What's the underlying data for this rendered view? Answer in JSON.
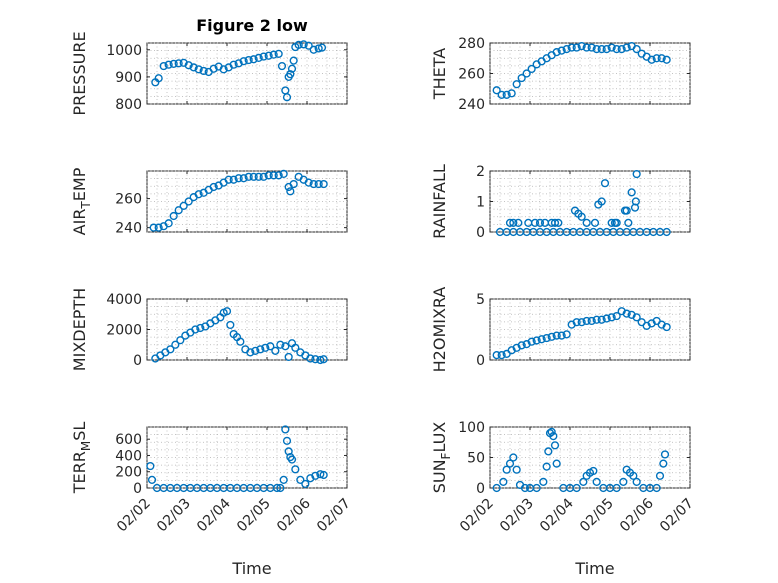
{
  "figure": {
    "title": "Figure 2 low",
    "xlabel": "Time",
    "marker_color": "#0072bd"
  },
  "chart_data": [
    {
      "id": "pressure",
      "type": "scatter",
      "title": "Figure 2 low",
      "ylabel": "PRESSURE",
      "ylim": [
        800,
        1025
      ],
      "yticks": [
        800,
        900,
        1000
      ],
      "xlim": [
        "02/02",
        "02/07"
      ],
      "xticks": [
        "02/02",
        "02/03",
        "02/04",
        "02/05",
        "02/06",
        "02/07"
      ],
      "show_xtick_labels": false,
      "x": [
        "02/02 05:00",
        "02/02 07:00",
        "02/02 10:00",
        "02/02 13:00",
        "02/02 16:00",
        "02/02 19:00",
        "02/02 22:00",
        "02/03 01:00",
        "02/03 04:00",
        "02/03 07:00",
        "02/03 10:00",
        "02/03 13:00",
        "02/03 16:00",
        "02/03 19:00",
        "02/03 22:00",
        "02/04 01:00",
        "02/04 04:00",
        "02/04 07:00",
        "02/04 10:00",
        "02/04 13:00",
        "02/04 16:00",
        "02/04 19:00",
        "02/04 22:00",
        "02/05 01:00",
        "02/05 04:00",
        "02/05 07:00",
        "02/05 09:00",
        "02/05 11:00",
        "02/05 12:00",
        "02/05 13:00",
        "02/05 14:00",
        "02/05 15:00",
        "02/05 16:00",
        "02/05 17:00",
        "02/05 19:00",
        "02/05 22:00",
        "02/06 01:00",
        "02/06 04:00",
        "02/06 07:00",
        "02/06 09:00"
      ],
      "y": [
        880,
        895,
        940,
        945,
        948,
        950,
        952,
        943,
        935,
        928,
        922,
        918,
        930,
        938,
        928,
        935,
        945,
        950,
        958,
        962,
        965,
        970,
        975,
        978,
        982,
        985,
        940,
        850,
        825,
        900,
        910,
        930,
        960,
        1010,
        1018,
        1020,
        1015,
        1000,
        1005,
        1008
      ]
    },
    {
      "id": "theta",
      "type": "scatter",
      "ylabel": "THETA",
      "ylim": [
        240,
        280
      ],
      "yticks": [
        240,
        260,
        280
      ],
      "xlim": [
        "02/02",
        "02/07"
      ],
      "xticks": [
        "02/02",
        "02/03",
        "02/04",
        "02/05",
        "02/06",
        "02/07"
      ],
      "show_xtick_labels": false,
      "x": [
        "02/02 04:00",
        "02/02 07:00",
        "02/02 10:00",
        "02/02 13:00",
        "02/02 16:00",
        "02/02 19:00",
        "02/02 22:00",
        "02/03 01:00",
        "02/03 04:00",
        "02/03 07:00",
        "02/03 10:00",
        "02/03 13:00",
        "02/03 16:00",
        "02/03 19:00",
        "02/03 22:00",
        "02/04 01:00",
        "02/04 04:00",
        "02/04 07:00",
        "02/04 10:00",
        "02/04 13:00",
        "02/04 16:00",
        "02/04 19:00",
        "02/04 22:00",
        "02/05 01:00",
        "02/05 04:00",
        "02/05 07:00",
        "02/05 10:00",
        "02/05 13:00",
        "02/05 16:00",
        "02/05 19:00",
        "02/05 22:00",
        "02/06 01:00",
        "02/06 04:00",
        "02/06 07:00",
        "02/06 10:00"
      ],
      "y": [
        249,
        246,
        246,
        247,
        253,
        257,
        260,
        263,
        266,
        268,
        270,
        272,
        274,
        275,
        276,
        277,
        277,
        278,
        277,
        277,
        276,
        276,
        276,
        277,
        276,
        276,
        277,
        278,
        276,
        273,
        271,
        269,
        270,
        270,
        269
      ]
    },
    {
      "id": "airtemp",
      "type": "scatter",
      "ylabel": "AIR_TEMP",
      "ylabel_base": "AIR",
      "ylabel_sub": "T",
      "ylabel_rest": "EMP",
      "ylim": [
        237,
        279
      ],
      "yticks": [
        240,
        260
      ],
      "xlim": [
        "02/02",
        "02/07"
      ],
      "xticks": [
        "02/02",
        "02/03",
        "02/04",
        "02/05",
        "02/06",
        "02/07"
      ],
      "show_xtick_labels": false,
      "x": [
        "02/02 04:00",
        "02/02 07:00",
        "02/02 10:00",
        "02/02 13:00",
        "02/02 16:00",
        "02/02 19:00",
        "02/02 22:00",
        "02/03 01:00",
        "02/03 04:00",
        "02/03 07:00",
        "02/03 10:00",
        "02/03 13:00",
        "02/03 16:00",
        "02/03 19:00",
        "02/03 22:00",
        "02/04 01:00",
        "02/04 04:00",
        "02/04 07:00",
        "02/04 10:00",
        "02/04 13:00",
        "02/04 16:00",
        "02/04 19:00",
        "02/04 22:00",
        "02/05 01:00",
        "02/05 04:00",
        "02/05 07:00",
        "02/05 10:00",
        "02/05 13:00",
        "02/05 14:00",
        "02/05 16:00",
        "02/05 19:00",
        "02/05 22:00",
        "02/06 01:00",
        "02/06 04:00",
        "02/06 07:00",
        "02/06 10:00"
      ],
      "y": [
        240,
        240,
        241,
        243,
        248,
        252,
        255,
        258,
        261,
        263,
        264,
        266,
        268,
        269,
        271,
        273,
        273,
        274,
        274,
        275,
        275,
        275,
        275,
        276,
        276,
        276,
        277,
        268,
        265,
        270,
        275,
        273,
        271,
        270,
        270,
        270
      ]
    },
    {
      "id": "rainfall",
      "type": "scatter",
      "ylabel": "RAINFALL",
      "ylim": [
        0,
        2
      ],
      "yticks": [
        0,
        1,
        2
      ],
      "xlim": [
        "02/02",
        "02/07"
      ],
      "xticks": [
        "02/02",
        "02/03",
        "02/04",
        "02/05",
        "02/06",
        "02/07"
      ],
      "show_xtick_labels": false,
      "x": [
        "02/02 06:00",
        "02/02 10:00",
        "02/02 14:00",
        "02/02 18:00",
        "02/02 22:00",
        "02/03 02:00",
        "02/03 06:00",
        "02/03 10:00",
        "02/03 14:00",
        "02/03 18:00",
        "02/03 22:00",
        "02/04 02:00",
        "02/04 06:00",
        "02/04 10:00",
        "02/04 14:00",
        "02/04 18:00",
        "02/04 22:00",
        "02/05 02:00",
        "02/05 06:00",
        "02/05 10:00",
        "02/05 14:00",
        "02/05 18:00",
        "02/05 22:00",
        "02/06 02:00",
        "02/06 06:00",
        "02/06 10:00",
        "02/02 12:00",
        "02/02 14:00",
        "02/02 17:00",
        "02/02 23:00",
        "02/03 03:00",
        "02/03 06:00",
        "02/03 09:00",
        "02/03 13:00",
        "02/03 15:00",
        "02/03 17:00",
        "02/04 03:00",
        "02/04 05:00",
        "02/04 07:00",
        "02/04 10:00",
        "02/04 15:00",
        "02/04 17:00",
        "02/04 19:00",
        "02/04 21:00",
        "02/05 01:00",
        "02/05 03:00",
        "02/05 04:00",
        "02/05 09:00",
        "02/05 10:00",
        "02/05 11:00",
        "02/05 13:00",
        "02/05 15:00",
        "02/05 15:30",
        "02/05 16:00"
      ],
      "y": [
        0,
        0,
        0,
        0,
        0,
        0,
        0,
        0,
        0,
        0,
        0,
        0,
        0,
        0,
        0,
        0,
        0,
        0,
        0,
        0,
        0,
        0,
        0,
        0,
        0,
        0,
        0.3,
        0.3,
        0.3,
        0.3,
        0.3,
        0.3,
        0.3,
        0.3,
        0.3,
        0.3,
        0.7,
        0.6,
        0.5,
        0.3,
        0.3,
        0.9,
        1.0,
        1.6,
        0.3,
        0.3,
        0.3,
        0.7,
        0.7,
        0.3,
        1.3,
        0.8,
        1.0,
        1.9
      ]
    },
    {
      "id": "mixdepth",
      "type": "scatter",
      "ylabel": "MIXDEPTH",
      "ylim": [
        0,
        4000
      ],
      "yticks": [
        0,
        2000,
        4000
      ],
      "xlim": [
        "02/02",
        "02/07"
      ],
      "xticks": [
        "02/02",
        "02/03",
        "02/04",
        "02/05",
        "02/06",
        "02/07"
      ],
      "show_xtick_labels": false,
      "x": [
        "02/02 05:00",
        "02/02 08:00",
        "02/02 11:00",
        "02/02 14:00",
        "02/02 17:00",
        "02/02 20:00",
        "02/02 23:00",
        "02/03 02:00",
        "02/03 05:00",
        "02/03 08:00",
        "02/03 11:00",
        "02/03 14:00",
        "02/03 17:00",
        "02/03 20:00",
        "02/03 22:00",
        "02/04 00:00",
        "02/04 02:00",
        "02/04 04:00",
        "02/04 06:00",
        "02/04 08:00",
        "02/04 11:00",
        "02/04 14:00",
        "02/04 17:00",
        "02/04 20:00",
        "02/04 23:00",
        "02/05 02:00",
        "02/05 05:00",
        "02/05 08:00",
        "02/05 11:00",
        "02/05 13:00",
        "02/05 15:00",
        "02/05 17:00",
        "02/05 20:00",
        "02/05 23:00",
        "02/06 02:00",
        "02/06 05:00",
        "02/06 08:00",
        "02/06 10:00"
      ],
      "y": [
        100,
        300,
        500,
        700,
        1000,
        1300,
        1600,
        1800,
        2000,
        2100,
        2200,
        2400,
        2600,
        2800,
        3100,
        3200,
        2300,
        1700,
        1500,
        1200,
        700,
        500,
        600,
        700,
        800,
        900,
        600,
        1000,
        900,
        200,
        1100,
        800,
        500,
        300,
        100,
        50,
        0,
        50
      ]
    },
    {
      "id": "h2omixra",
      "type": "scatter",
      "ylabel": "H2OMIXRA",
      "ylim": [
        0,
        5
      ],
      "yticks": [
        0,
        5
      ],
      "xlim": [
        "02/02",
        "02/07"
      ],
      "xticks": [
        "02/02",
        "02/03",
        "02/04",
        "02/05",
        "02/06",
        "02/07"
      ],
      "show_xtick_labels": false,
      "x": [
        "02/02 04:00",
        "02/02 07:00",
        "02/02 10:00",
        "02/02 13:00",
        "02/02 16:00",
        "02/02 19:00",
        "02/02 22:00",
        "02/03 01:00",
        "02/03 04:00",
        "02/03 07:00",
        "02/03 10:00",
        "02/03 13:00",
        "02/03 16:00",
        "02/03 19:00",
        "02/03 22:00",
        "02/04 01:00",
        "02/04 04:00",
        "02/04 07:00",
        "02/04 10:00",
        "02/04 13:00",
        "02/04 16:00",
        "02/04 19:00",
        "02/04 22:00",
        "02/05 01:00",
        "02/05 04:00",
        "02/05 07:00",
        "02/05 10:00",
        "02/05 13:00",
        "02/05 16:00",
        "02/05 19:00",
        "02/05 22:00",
        "02/06 01:00",
        "02/06 04:00",
        "02/06 07:00",
        "02/06 10:00"
      ],
      "y": [
        0.4,
        0.4,
        0.5,
        0.8,
        1.0,
        1.2,
        1.3,
        1.5,
        1.6,
        1.7,
        1.8,
        1.9,
        2.0,
        2.0,
        2.1,
        2.9,
        3.1,
        3.1,
        3.2,
        3.2,
        3.3,
        3.3,
        3.4,
        3.5,
        3.6,
        4.0,
        3.8,
        3.7,
        3.5,
        3.1,
        2.8,
        3.0,
        3.2,
        2.9,
        2.7
      ]
    },
    {
      "id": "terrmsl",
      "type": "scatter",
      "ylabel": "TERR_MSL",
      "ylabel_base": "TERR",
      "ylabel_sub": "M",
      "ylabel_rest": "SL",
      "ylim": [
        0,
        750
      ],
      "yticks": [
        0,
        200,
        400,
        600
      ],
      "xlim": [
        "02/02",
        "02/07"
      ],
      "xticks": [
        "02/02",
        "02/03",
        "02/04",
        "02/05",
        "02/06",
        "02/07"
      ],
      "xtick_labels": [
        "02/02",
        "02/03",
        "02/04",
        "02/05",
        "02/06",
        "02/07"
      ],
      "show_xtick_labels": true,
      "x": [
        "02/02 02:00",
        "02/02 03:00",
        "02/02 06:00",
        "02/02 10:00",
        "02/02 14:00",
        "02/02 18:00",
        "02/02 22:00",
        "02/03 02:00",
        "02/03 06:00",
        "02/03 10:00",
        "02/03 14:00",
        "02/03 18:00",
        "02/03 22:00",
        "02/04 02:00",
        "02/04 06:00",
        "02/04 10:00",
        "02/04 14:00",
        "02/04 18:00",
        "02/04 22:00",
        "02/05 02:00",
        "02/05 06:00",
        "02/05 08:00",
        "02/05 10:00",
        "02/05 11:00",
        "02/05 12:00",
        "02/05 13:00",
        "02/05 14:00",
        "02/05 15:00",
        "02/05 17:00",
        "02/05 20:00",
        "02/05 23:00",
        "02/06 02:00",
        "02/06 05:00",
        "02/06 08:00",
        "02/06 10:00"
      ],
      "y": [
        270,
        100,
        0,
        0,
        0,
        0,
        0,
        0,
        0,
        0,
        0,
        0,
        0,
        0,
        0,
        0,
        0,
        0,
        0,
        0,
        0,
        0,
        100,
        720,
        580,
        450,
        380,
        350,
        230,
        100,
        50,
        120,
        150,
        170,
        160
      ]
    },
    {
      "id": "sunflux",
      "type": "scatter",
      "ylabel": "SUN_FLUX",
      "ylabel_base": "SUN",
      "ylabel_sub": "F",
      "ylabel_rest": "LUX",
      "ylim": [
        0,
        100
      ],
      "yticks": [
        0,
        50,
        100
      ],
      "xlim": [
        "02/02",
        "02/07"
      ],
      "xticks": [
        "02/02",
        "02/03",
        "02/04",
        "02/05",
        "02/06",
        "02/07"
      ],
      "xtick_labels": [
        "02/02",
        "02/03",
        "02/04",
        "02/05",
        "02/06",
        "02/07"
      ],
      "show_xtick_labels": true,
      "x": [
        "02/02 04:00",
        "02/02 08:00",
        "02/02 10:00",
        "02/02 12:00",
        "02/02 14:00",
        "02/02 16:00",
        "02/02 18:00",
        "02/02 21:00",
        "02/03 00:00",
        "02/03 04:00",
        "02/03 08:00",
        "02/03 10:00",
        "02/03 11:00",
        "02/03 12:00",
        "02/03 13:00",
        "02/03 14:00",
        "02/03 15:00",
        "02/03 16:00",
        "02/03 20:00",
        "02/04 00:00",
        "02/04 04:00",
        "02/04 08:00",
        "02/04 10:00",
        "02/04 12:00",
        "02/04 14:00",
        "02/04 16:00",
        "02/04 20:00",
        "02/05 00:00",
        "02/05 04:00",
        "02/05 08:00",
        "02/05 10:00",
        "02/05 12:00",
        "02/05 14:00",
        "02/05 16:00",
        "02/05 20:00",
        "02/06 00:00",
        "02/06 04:00",
        "02/06 06:00",
        "02/06 08:00",
        "02/06 09:00"
      ],
      "y": [
        0,
        10,
        30,
        40,
        50,
        30,
        5,
        0,
        0,
        0,
        10,
        35,
        60,
        90,
        92,
        85,
        70,
        40,
        0,
        0,
        0,
        10,
        20,
        25,
        28,
        10,
        0,
        0,
        0,
        10,
        30,
        25,
        20,
        10,
        0,
        0,
        0,
        20,
        40,
        55
      ]
    }
  ]
}
